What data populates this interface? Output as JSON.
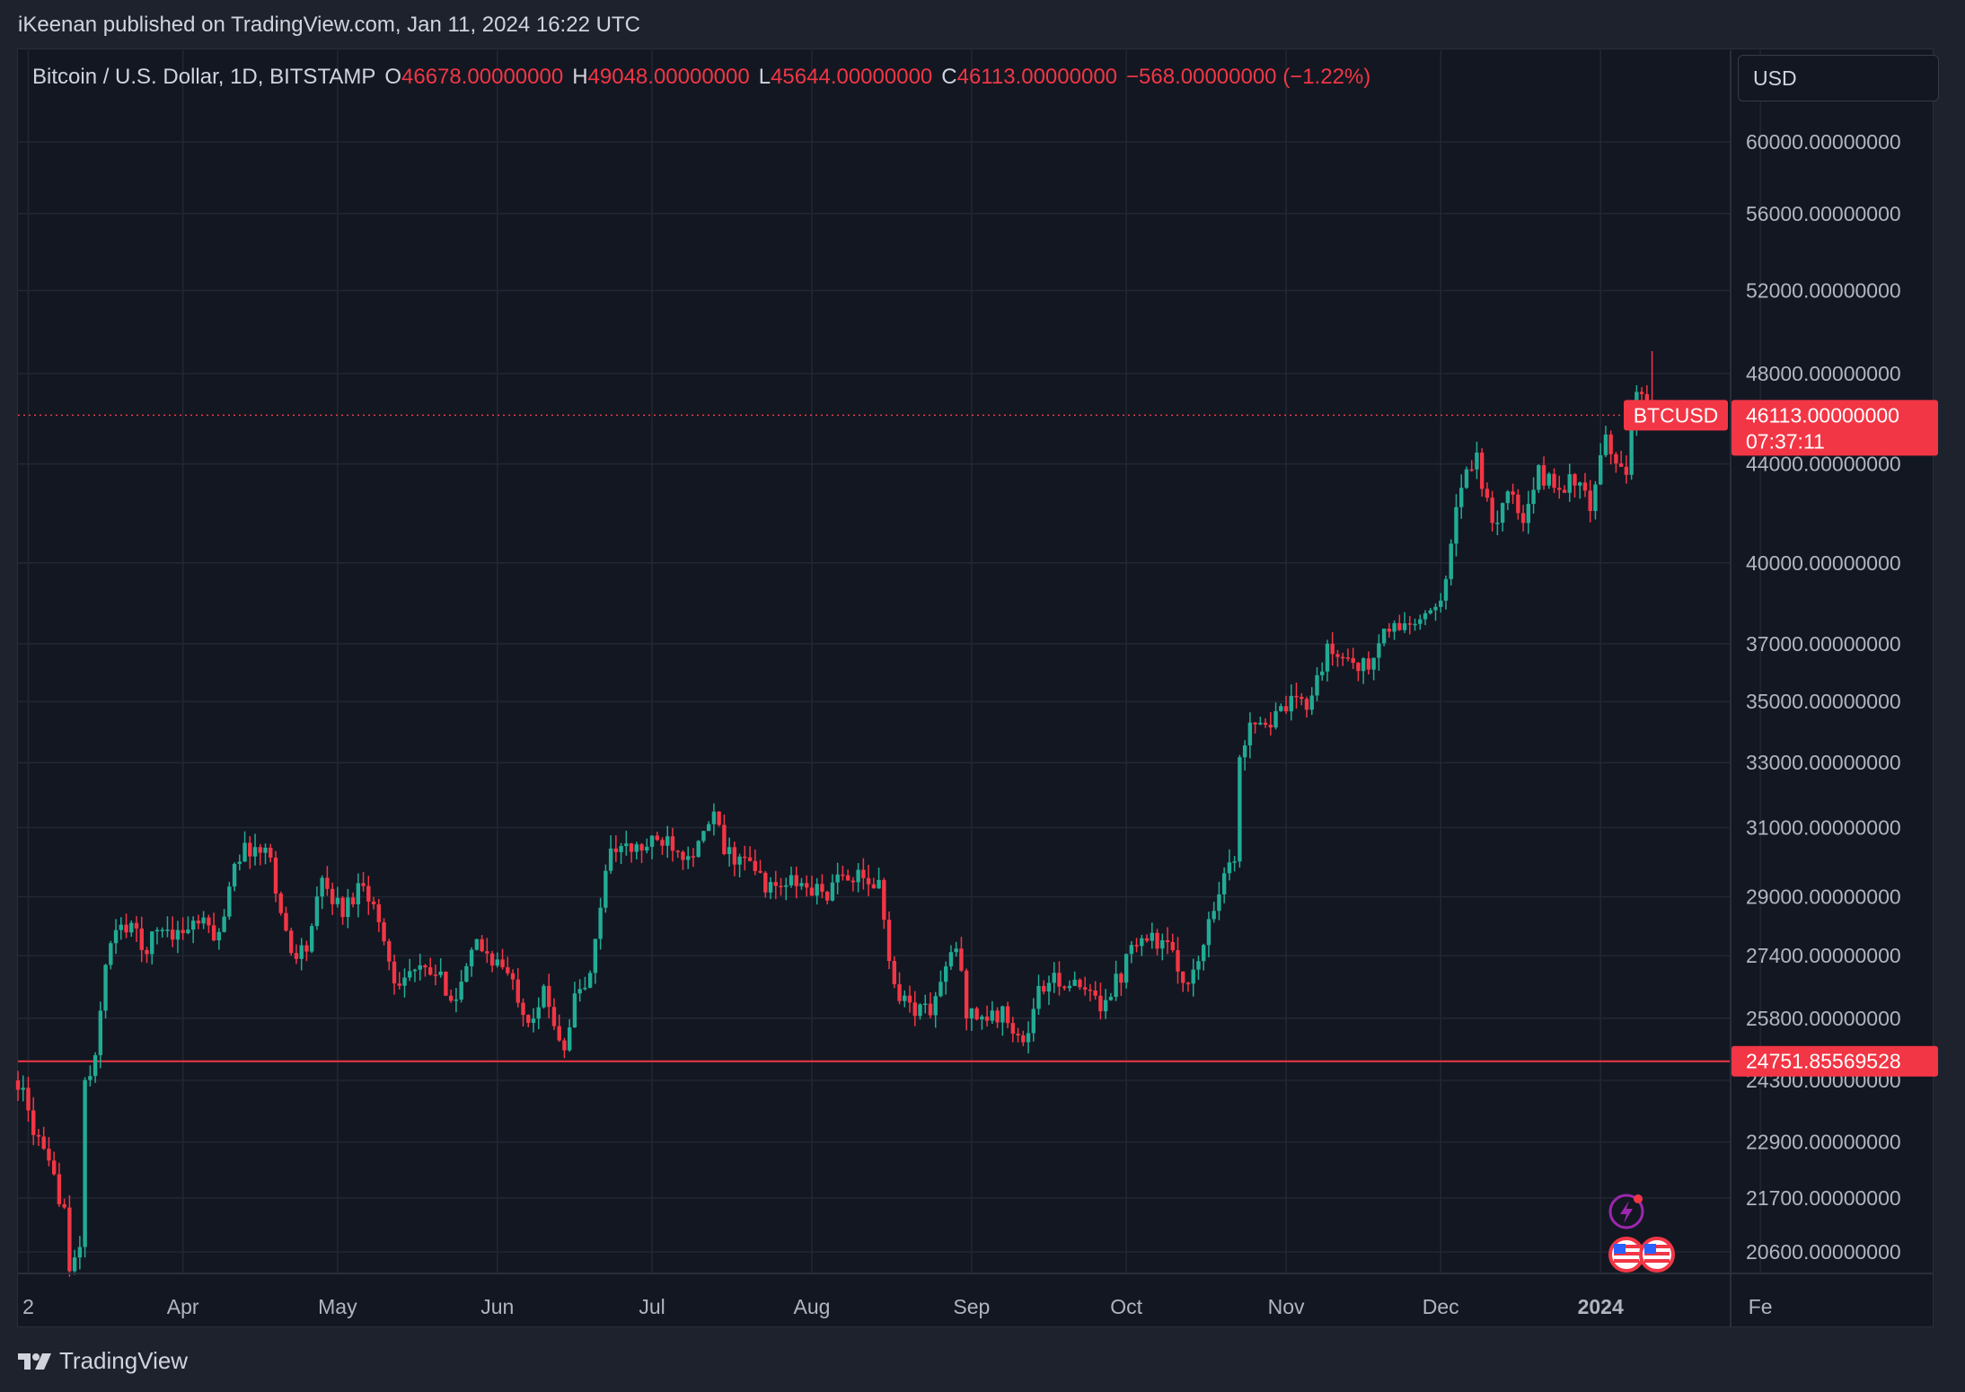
{
  "attribution": "iKeenan published on TradingView.com, Jan 11, 2024 16:22 UTC",
  "legend": {
    "symbol": "Bitcoin / U.S. Dollar, 1D, BITSTAMP",
    "open_label": "O",
    "open_value": "46678.00000000",
    "high_label": "H",
    "high_value": "49048.00000000",
    "low_label": "L",
    "low_value": "45644.00000000",
    "close_label": "C",
    "close_value": "46113.00000000",
    "change": "−568.00000000 (−1.22%)"
  },
  "currency_button": "USD",
  "footer": {
    "brand": "TradingView",
    "icon": "tradingview-logo-icon"
  },
  "colors": {
    "up": "#22ab94",
    "down": "#f23645",
    "background": "#131722",
    "grid": "#232733",
    "axis_text": "#b2b5be"
  },
  "chart_data": {
    "type": "candlestick",
    "symbol": "BTCUSD",
    "interval": "1D",
    "exchange": "BITSTAMP",
    "y_scale": "log",
    "y_ticks": [
      60000,
      56000,
      52000,
      48000,
      44000,
      40000,
      37000,
      35000,
      33000,
      31000,
      29000,
      27400,
      25800,
      24300,
      22900,
      21700,
      20600
    ],
    "y_tick_labels": [
      "60000.00000000",
      "56000.00000000",
      "52000.00000000",
      "48000.00000000",
      "44000.00000000",
      "40000.00000000",
      "37000.00000000",
      "35000.00000000",
      "33000.00000000",
      "31000.00000000",
      "29000.00000000",
      "27400.00000000",
      "25800.00000000",
      "24300.00000000",
      "22900.00000000",
      "21700.00000000",
      "20600.00000000"
    ],
    "x_ticks": [
      {
        "label": "2",
        "date": "2023-03-02"
      },
      {
        "label": "Apr",
        "date": "2023-04-01"
      },
      {
        "label": "May",
        "date": "2023-05-01"
      },
      {
        "label": "Jun",
        "date": "2023-06-01"
      },
      {
        "label": "Jul",
        "date": "2023-07-01"
      },
      {
        "label": "Aug",
        "date": "2023-08-01"
      },
      {
        "label": "Sep",
        "date": "2023-09-01"
      },
      {
        "label": "Oct",
        "date": "2023-10-01"
      },
      {
        "label": "Nov",
        "date": "2023-11-01"
      },
      {
        "label": "Dec",
        "date": "2023-12-01"
      },
      {
        "label": "2024",
        "date": "2024-01-01",
        "bold": true
      },
      {
        "label": "Fe",
        "date": "2024-02-01"
      }
    ],
    "last_price": {
      "label": "BTCUSD",
      "price": 46113,
      "value_text": "46113.00000000",
      "countdown": "07:37:11"
    },
    "horizontal_line": {
      "price": 24751.85569528,
      "label": "24751.85569528"
    },
    "anchors": [
      [
        "2023-02-28",
        24300
      ],
      [
        "2023-03-03",
        23200
      ],
      [
        "2023-03-06",
        22300
      ],
      [
        "2023-03-09",
        21500
      ],
      [
        "2023-03-10",
        20100
      ],
      [
        "2023-03-12",
        20800
      ],
      [
        "2023-03-13",
        24200
      ],
      [
        "2023-03-15",
        24700
      ],
      [
        "2023-03-17",
        27300
      ],
      [
        "2023-03-19",
        28000
      ],
      [
        "2023-03-22",
        28300
      ],
      [
        "2023-03-24",
        27500
      ],
      [
        "2023-03-28",
        28200
      ],
      [
        "2023-03-31",
        28000
      ],
      [
        "2023-04-04",
        28300
      ],
      [
        "2023-04-08",
        27900
      ],
      [
        "2023-04-11",
        30100
      ],
      [
        "2023-04-14",
        30400
      ],
      [
        "2023-04-18",
        30200
      ],
      [
        "2023-04-20",
        28500
      ],
      [
        "2023-04-22",
        27500
      ],
      [
        "2023-04-25",
        27600
      ],
      [
        "2023-04-28",
        29400
      ],
      [
        "2023-05-02",
        28600
      ],
      [
        "2023-05-06",
        29500
      ],
      [
        "2023-05-09",
        28300
      ],
      [
        "2023-05-12",
        26800
      ],
      [
        "2023-05-16",
        27000
      ],
      [
        "2023-05-20",
        26900
      ],
      [
        "2023-05-24",
        26300
      ],
      [
        "2023-05-28",
        27700
      ],
      [
        "2023-06-02",
        27100
      ],
      [
        "2023-06-05",
        26400
      ],
      [
        "2023-06-07",
        25800
      ],
      [
        "2023-06-10",
        26400
      ],
      [
        "2023-06-14",
        25100
      ],
      [
        "2023-06-16",
        26300
      ],
      [
        "2023-06-19",
        26800
      ],
      [
        "2023-06-21",
        28800
      ],
      [
        "2023-06-23",
        30500
      ],
      [
        "2023-06-27",
        30300
      ],
      [
        "2023-07-01",
        30500
      ],
      [
        "2023-07-04",
        30700
      ],
      [
        "2023-07-07",
        30300
      ],
      [
        "2023-07-10",
        30400
      ],
      [
        "2023-07-13",
        31400
      ],
      [
        "2023-07-15",
        30300
      ],
      [
        "2023-07-20",
        29900
      ],
      [
        "2023-07-24",
        29200
      ],
      [
        "2023-07-28",
        29400
      ],
      [
        "2023-08-01",
        29200
      ],
      [
        "2023-08-04",
        29100
      ],
      [
        "2023-08-08",
        29700
      ],
      [
        "2023-08-11",
        29400
      ],
      [
        "2023-08-14",
        29300
      ],
      [
        "2023-08-17",
        26600
      ],
      [
        "2023-08-20",
        26100
      ],
      [
        "2023-08-24",
        26000
      ],
      [
        "2023-08-29",
        27700
      ],
      [
        "2023-08-31",
        26000
      ],
      [
        "2023-09-04",
        25800
      ],
      [
        "2023-09-08",
        25900
      ],
      [
        "2023-09-11",
        25100
      ],
      [
        "2023-09-14",
        26500
      ],
      [
        "2023-09-18",
        26800
      ],
      [
        "2023-09-22",
        26500
      ],
      [
        "2023-09-26",
        26200
      ],
      [
        "2023-09-30",
        26900
      ],
      [
        "2023-10-02",
        27900
      ],
      [
        "2023-10-06",
        27900
      ],
      [
        "2023-10-09",
        27600
      ],
      [
        "2023-10-12",
        26800
      ],
      [
        "2023-10-15",
        27100
      ],
      [
        "2023-10-17",
        28400
      ],
      [
        "2023-10-20",
        29700
      ],
      [
        "2023-10-22",
        30000
      ],
      [
        "2023-10-23",
        33000
      ],
      [
        "2023-10-25",
        34500
      ],
      [
        "2023-10-29",
        34300
      ],
      [
        "2023-11-02",
        34900
      ],
      [
        "2023-11-05",
        35000
      ],
      [
        "2023-11-09",
        36700
      ],
      [
        "2023-11-13",
        36500
      ],
      [
        "2023-11-17",
        36100
      ],
      [
        "2023-11-20",
        37400
      ],
      [
        "2023-11-24",
        37700
      ],
      [
        "2023-11-28",
        37800
      ],
      [
        "2023-12-01",
        38700
      ],
      [
        "2023-12-04",
        41900
      ],
      [
        "2023-12-06",
        44000
      ],
      [
        "2023-12-08",
        44200
      ],
      [
        "2023-12-11",
        41300
      ],
      [
        "2023-12-14",
        43000
      ],
      [
        "2023-12-17",
        41400
      ],
      [
        "2023-12-20",
        43600
      ],
      [
        "2023-12-24",
        43000
      ],
      [
        "2023-12-27",
        43400
      ],
      [
        "2023-12-30",
        42100
      ],
      [
        "2024-01-02",
        45000
      ],
      [
        "2024-01-04",
        44100
      ],
      [
        "2024-01-06",
        43900
      ],
      [
        "2024-01-08",
        46900
      ],
      [
        "2024-01-10",
        46700
      ],
      [
        "2024-01-11",
        46113
      ]
    ]
  }
}
